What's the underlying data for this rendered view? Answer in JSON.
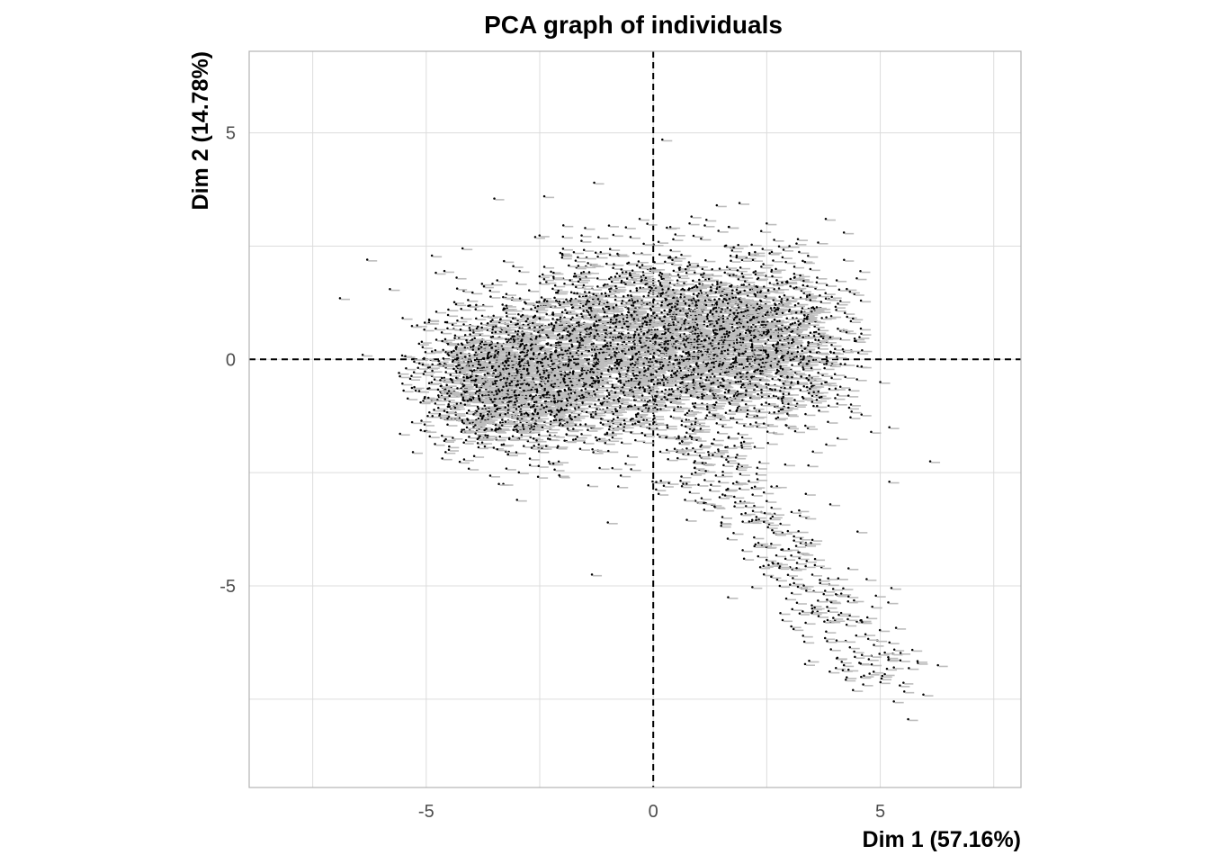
{
  "chart_data": {
    "type": "scatter",
    "title": "PCA graph of individuals",
    "xlabel": "Dim 1 (57.16%)",
    "ylabel": "Dim 2 (14.78%)",
    "xlim": [
      -8.9,
      8.1
    ],
    "ylim": [
      -9.45,
      6.8
    ],
    "x_ticks": [
      {
        "value": -5,
        "label": "-5"
      },
      {
        "value": 0,
        "label": "0"
      },
      {
        "value": 5,
        "label": "5"
      }
    ],
    "y_ticks": [
      {
        "value": 5,
        "label": "5"
      },
      {
        "value": 0,
        "label": "0"
      },
      {
        "value": -5,
        "label": "-5"
      }
    ],
    "grid": true,
    "reference_lines": {
      "x": 0,
      "y": 0,
      "style": "dashed"
    },
    "point_color": "#000000",
    "label_color": "#bdbdbd",
    "n_points_approx": 6000,
    "points_note": "dense cloud of individuals with grey text labels; outlier coordinates listed below",
    "points": [
      [
        0.2,
        4.85
      ],
      [
        -3.5,
        3.55
      ],
      [
        -2.4,
        3.6
      ],
      [
        -1.3,
        3.9
      ],
      [
        -6.3,
        2.2
      ],
      [
        -5.8,
        1.55
      ],
      [
        -6.9,
        1.35
      ],
      [
        -6.4,
        0.1
      ],
      [
        -4.2,
        2.45
      ],
      [
        -4.6,
        1.95
      ],
      [
        -2.6,
        2.7
      ],
      [
        -0.3,
        3.1
      ],
      [
        1.9,
        3.45
      ],
      [
        3.8,
        3.1
      ],
      [
        4.2,
        2.8
      ],
      [
        -3.4,
        -2.75
      ],
      [
        -3.0,
        -3.1
      ],
      [
        -1.0,
        -3.6
      ],
      [
        -1.35,
        -4.75
      ],
      [
        1.65,
        -5.25
      ],
      [
        6.1,
        -2.25
      ],
      [
        5.2,
        -1.5
      ],
      [
        5.2,
        -2.7
      ],
      [
        5.0,
        -0.5
      ],
      [
        4.5,
        -3.8
      ],
      [
        4.7,
        -4.85
      ],
      [
        4.6,
        -5.8
      ],
      [
        3.3,
        -6.1
      ],
      [
        4.3,
        -6.85
      ],
      [
        5.1,
        -6.95
      ],
      [
        5.3,
        -6.8
      ],
      [
        4.4,
        -7.3
      ],
      [
        5.3,
        -7.55
      ],
      [
        5.95,
        -7.4
      ],
      [
        4.2,
        -6.75
      ],
      [
        2.8,
        -5.6
      ],
      [
        3.5,
        -5.5
      ],
      [
        2.6,
        -4.8
      ],
      [
        2.0,
        -4.4
      ],
      [
        1.5,
        -3.6
      ],
      [
        0.7,
        -3.1
      ],
      [
        3.1,
        -4.0
      ],
      [
        3.9,
        -3.2
      ],
      [
        -0.5,
        2.7
      ],
      [
        0.8,
        3.0
      ],
      [
        2.5,
        3.0
      ],
      [
        1.4,
        3.4
      ],
      [
        -1.5,
        2.9
      ],
      [
        -5.2,
        0.75
      ],
      [
        -5.6,
        -0.3
      ],
      [
        -4.6,
        -1.8
      ],
      [
        -3.2,
        -2.1
      ],
      [
        -2.2,
        -2.3
      ],
      [
        -0.9,
        -2.4
      ],
      [
        0.3,
        -2.0
      ],
      [
        4.4,
        0.9
      ],
      [
        4.6,
        0.2
      ],
      [
        4.3,
        -0.8
      ],
      [
        4.8,
        -1.6
      ],
      [
        3.6,
        1.7
      ],
      [
        3.0,
        2.5
      ],
      [
        -4.8,
        0.2
      ],
      [
        -4.5,
        -0.7
      ],
      [
        -3.9,
        1.2
      ],
      [
        -2.0,
        2.3
      ]
    ]
  }
}
